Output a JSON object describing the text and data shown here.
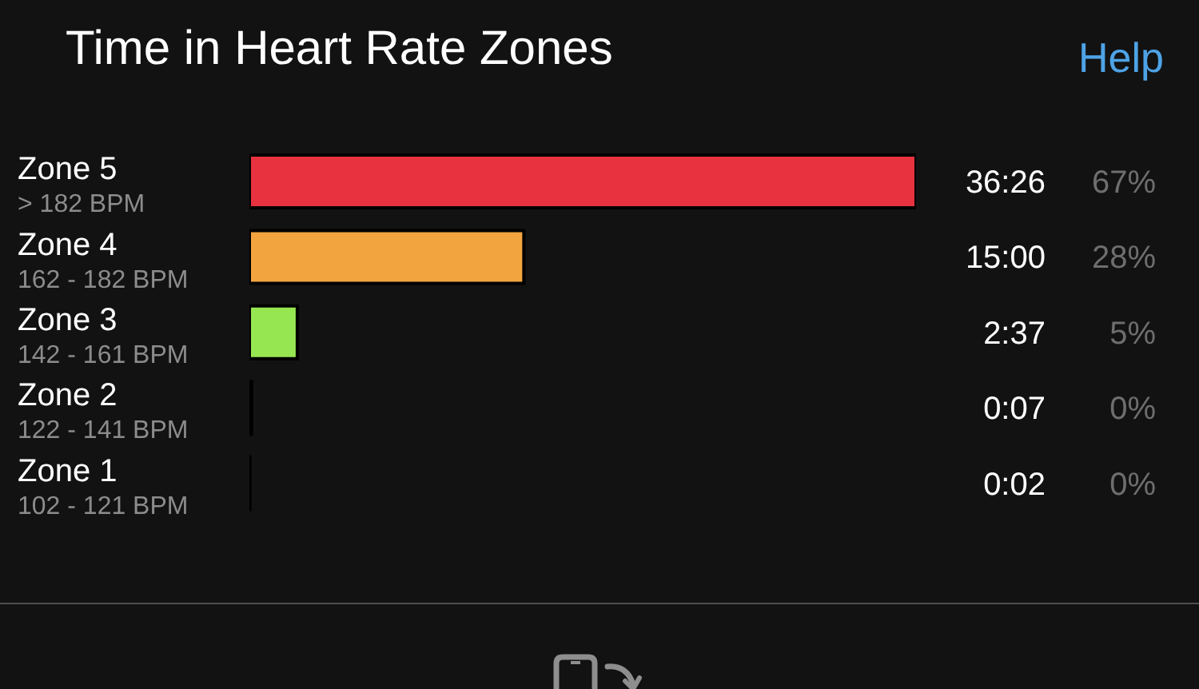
{
  "chart_data": {
    "type": "bar",
    "orientation": "horizontal",
    "title": "Time in Heart Rate Zones",
    "categories": [
      "Zone 5\n> 182 BPM",
      "Zone 4\n162 - 182 BPM",
      "Zone 3\n142 - 161 BPM",
      "Zone 2\n122 - 141 BPM",
      "Zone 1\n102 - 121 BPM"
    ],
    "values": [
      36.433,
      15,
      2.617,
      0.117,
      0.033
    ],
    "colors": [
      "#e8323f",
      "#f2a43f",
      "#96e651",
      "#3b9be0",
      "#a0a0a0"
    ],
    "value_labels": [
      "36:26",
      "15:00",
      "2:37",
      "0:07",
      "0:02"
    ],
    "annotations": [
      "Help",
      "67%",
      "28%",
      "5%",
      "0%",
      "0%"
    ],
    "tick_labels": "y"
  }
}
